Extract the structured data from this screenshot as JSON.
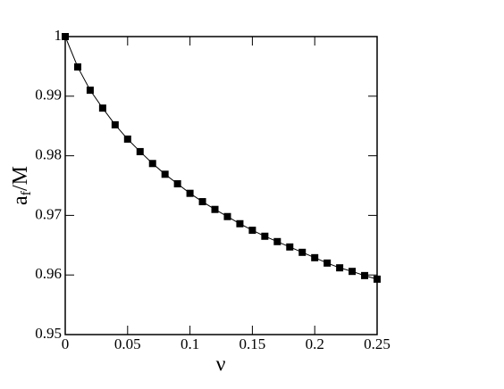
{
  "chart_data": {
    "type": "line",
    "xlabel": "ν",
    "ylabel": [
      "a",
      "f",
      "/M"
    ],
    "x": [
      0,
      0.01,
      0.02,
      0.03,
      0.04,
      0.05,
      0.06,
      0.07,
      0.08,
      0.09,
      0.1,
      0.11,
      0.12,
      0.13,
      0.14,
      0.15,
      0.16,
      0.17,
      0.18,
      0.19,
      0.2,
      0.21,
      0.22,
      0.23,
      0.24,
      0.25
    ],
    "series": [
      {
        "color": "#000000",
        "values": [
          1.0,
          0.9949,
          0.991,
          0.988,
          0.9852,
          0.9828,
          0.9807,
          0.9787,
          0.9769,
          0.9753,
          0.9737,
          0.9723,
          0.971,
          0.9698,
          0.9686,
          0.9675,
          0.9665,
          0.9656,
          0.9647,
          0.9638,
          0.9629,
          0.962,
          0.9612,
          0.9606,
          0.9599,
          0.9593
        ]
      }
    ],
    "xlim": [
      0,
      0.25
    ],
    "xticks": [
      0,
      0.05,
      0.1,
      0.15,
      0.2,
      0.25
    ],
    "ylim": [
      0.95,
      1
    ],
    "yticks": [
      0.95,
      0.96,
      0.97,
      0.98,
      0.99,
      1
    ]
  }
}
